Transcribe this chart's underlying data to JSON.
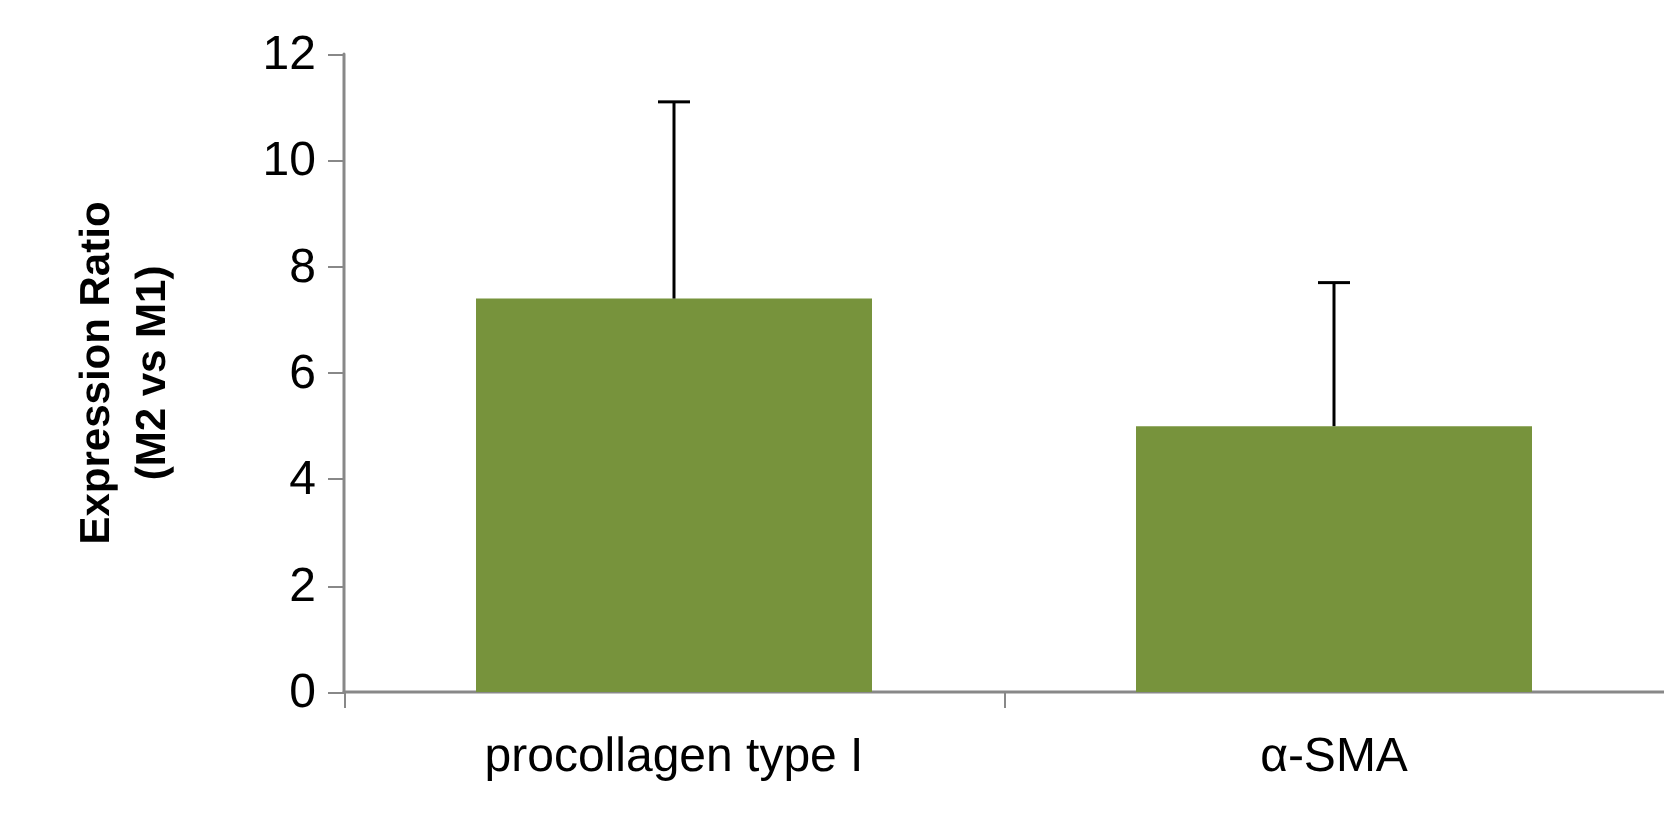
{
  "chart_data": {
    "type": "bar",
    "ylabel": "Expression Ratio\n(M2 vs M1)",
    "categories": [
      "procollagen type I",
      "α-SMA"
    ],
    "values": [
      7.4,
      5.0
    ],
    "color": "#77933c",
    "errors": [
      [
        7.4,
        11.1
      ],
      [
        5.0,
        7.7
      ]
    ],
    "ylim": [
      0,
      12
    ],
    "yticks": [
      0,
      2,
      4,
      6,
      8,
      10,
      12
    ],
    "grid": false
  }
}
